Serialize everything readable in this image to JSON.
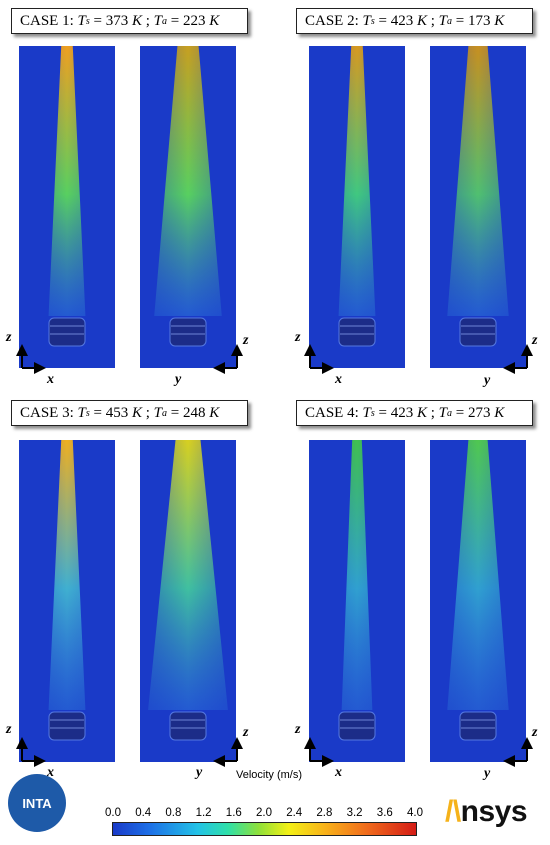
{
  "cases": [
    {
      "id": "case-1",
      "prefix": "CASE 1:",
      "Ts": "373",
      "Ta": "223",
      "unit": "K",
      "axis_left": "x",
      "axis_right": "y",
      "vertical_axis": "z"
    },
    {
      "id": "case-2",
      "prefix": "CASE 2:",
      "Ts": "423",
      "Ta": "173",
      "unit": "K",
      "axis_left": "x",
      "axis_right": "y",
      "vertical_axis": "z"
    },
    {
      "id": "case-3",
      "prefix": "CASE 3:",
      "Ts": "453",
      "Ta": "248",
      "unit": "K",
      "axis_left": "x",
      "axis_right": "y",
      "vertical_axis": "z"
    },
    {
      "id": "case-4",
      "prefix": "CASE 4:",
      "Ts": "423",
      "Ta": "273",
      "unit": "K",
      "axis_left": "x",
      "axis_right": "y",
      "vertical_axis": "z"
    }
  ],
  "symbols": {
    "Ts": "T",
    "Ts_sub": "s",
    "Ta": "T",
    "Ta_sub": "a",
    "eq": "=",
    "sep": ";"
  },
  "colorbar": {
    "title": "Velocity (m/s)",
    "ticks": [
      "0.0",
      "0.4",
      "0.8",
      "1.2",
      "1.6",
      "2.0",
      "2.4",
      "2.8",
      "3.2",
      "3.6",
      "4.0"
    ],
    "min": 0.0,
    "max": 4.0,
    "colors": [
      "#1a3ac8",
      "#1d6fe6",
      "#23c2e6",
      "#2fe0a8",
      "#8ee03a",
      "#f3f016",
      "#f8b21a",
      "#f06a1c",
      "#d41c16"
    ]
  },
  "logos": {
    "left": "INTA",
    "right_mark": "/\\",
    "right_text": "nsys"
  }
}
